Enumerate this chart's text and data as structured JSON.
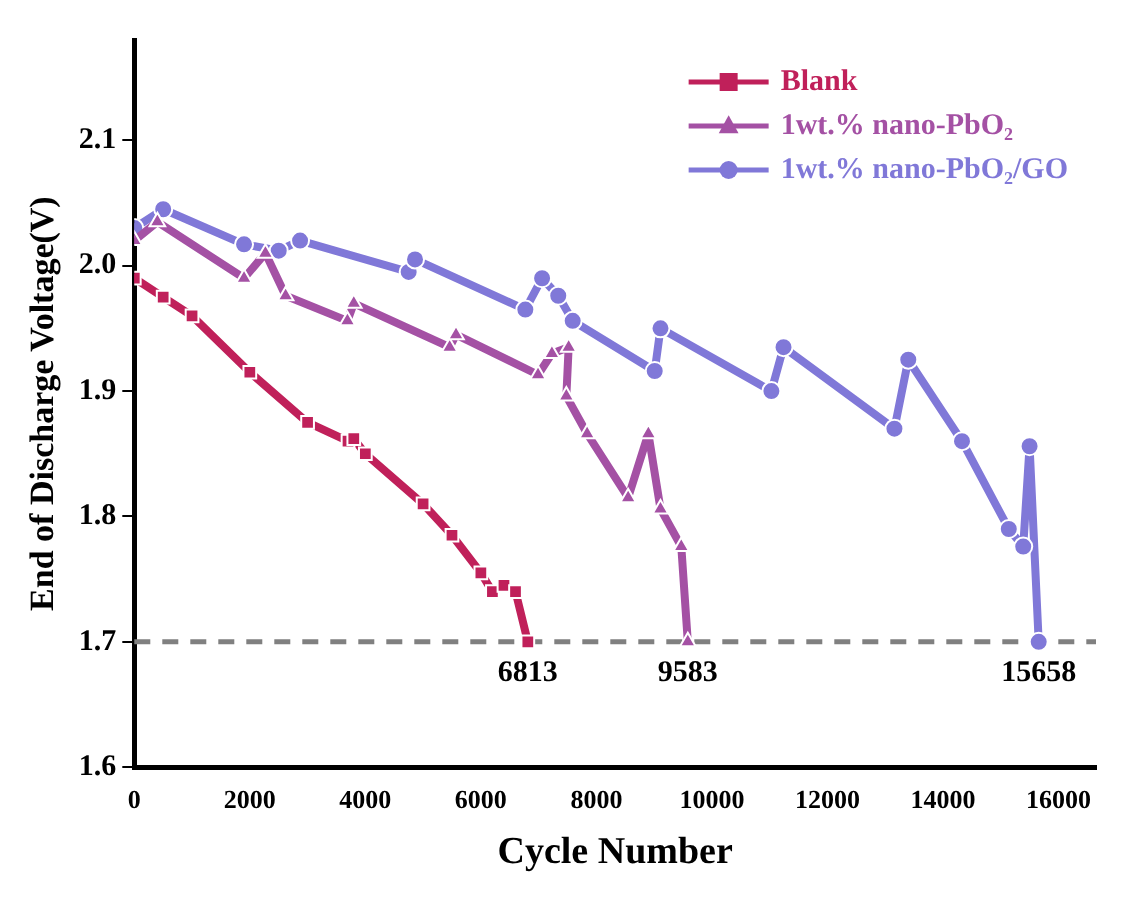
{
  "chart_data": {
    "type": "line",
    "xlabel": "Cycle Number",
    "ylabel": "End of Discharge Voltage(V)",
    "xlim": [
      0,
      16650
    ],
    "xticks": [
      0,
      2000,
      4000,
      6000,
      8000,
      10000,
      12000,
      14000,
      16000
    ],
    "ylim": [
      1.6,
      2.18
    ],
    "yticks": [
      {
        "value": 1.6,
        "label": "1.6"
      },
      {
        "value": 1.7,
        "label": "1.7"
      },
      {
        "value": 1.8,
        "label": "1.8"
      },
      {
        "value": 1.9,
        "label": "1.9"
      },
      {
        "value": 2,
        "label": "2.0"
      },
      {
        "value": 2.1,
        "label": "2.1"
      }
    ],
    "grid": false,
    "legend": "top right",
    "line_style": "solid",
    "series": [
      {
        "name": "Blank",
        "color": "#c0205a",
        "marker": "square",
        "x": [
          0,
          500,
          1000,
          2000,
          3000,
          3700,
          3800,
          4000,
          5000,
          5500,
          6000,
          6200,
          6400,
          6600,
          6813
        ],
        "values": [
          1.99,
          1.975,
          1.96,
          1.915,
          1.875,
          1.86,
          1.862,
          1.85,
          1.81,
          1.785,
          1.755,
          1.74,
          1.745,
          1.74,
          1.7
        ]
      },
      {
        "name": "1wt.% nano-PbO₂",
        "color": "#a451a4",
        "marker": "triangle",
        "x": [
          0,
          400,
          1900,
          2270,
          2620,
          3690,
          3800,
          5460,
          5570,
          6990,
          7230,
          7520,
          7480,
          7840,
          8550,
          8900,
          9110,
          9470,
          9583
        ],
        "values": [
          2.02,
          2.035,
          1.99,
          2.01,
          1.976,
          1.956,
          1.97,
          1.935,
          1.945,
          1.913,
          1.93,
          1.935,
          1.896,
          1.866,
          1.815,
          1.866,
          1.806,
          1.776,
          1.7
        ]
      },
      {
        "name": "1wt.% nano-PbO₂/GO",
        "color": "#8078d8",
        "marker": "circle",
        "x": [
          0,
          500,
          1900,
          2500,
          2870,
          4750,
          4860,
          6770,
          7060,
          7340,
          7590,
          9010,
          9110,
          11030,
          11240,
          13160,
          13400,
          14330,
          15140,
          15390,
          15500,
          15658
        ],
        "values": [
          2.03,
          2.045,
          2.017,
          2.012,
          2.02,
          1.995,
          2.005,
          1.965,
          1.99,
          1.976,
          1.956,
          1.916,
          1.95,
          1.9,
          1.935,
          1.87,
          1.925,
          1.86,
          1.79,
          1.776,
          1.856,
          1.7
        ]
      }
    ],
    "ref_lines": [
      {
        "axis": "y",
        "value": 1.7,
        "color": "#808080",
        "line_style": "dashed"
      }
    ],
    "annotations": [
      {
        "text": "6813",
        "x": 6813,
        "y": 1.7
      },
      {
        "text": "9583",
        "x": 9583,
        "y": 1.7
      },
      {
        "text": "15658",
        "x": 15658,
        "y": 1.7
      }
    ]
  }
}
